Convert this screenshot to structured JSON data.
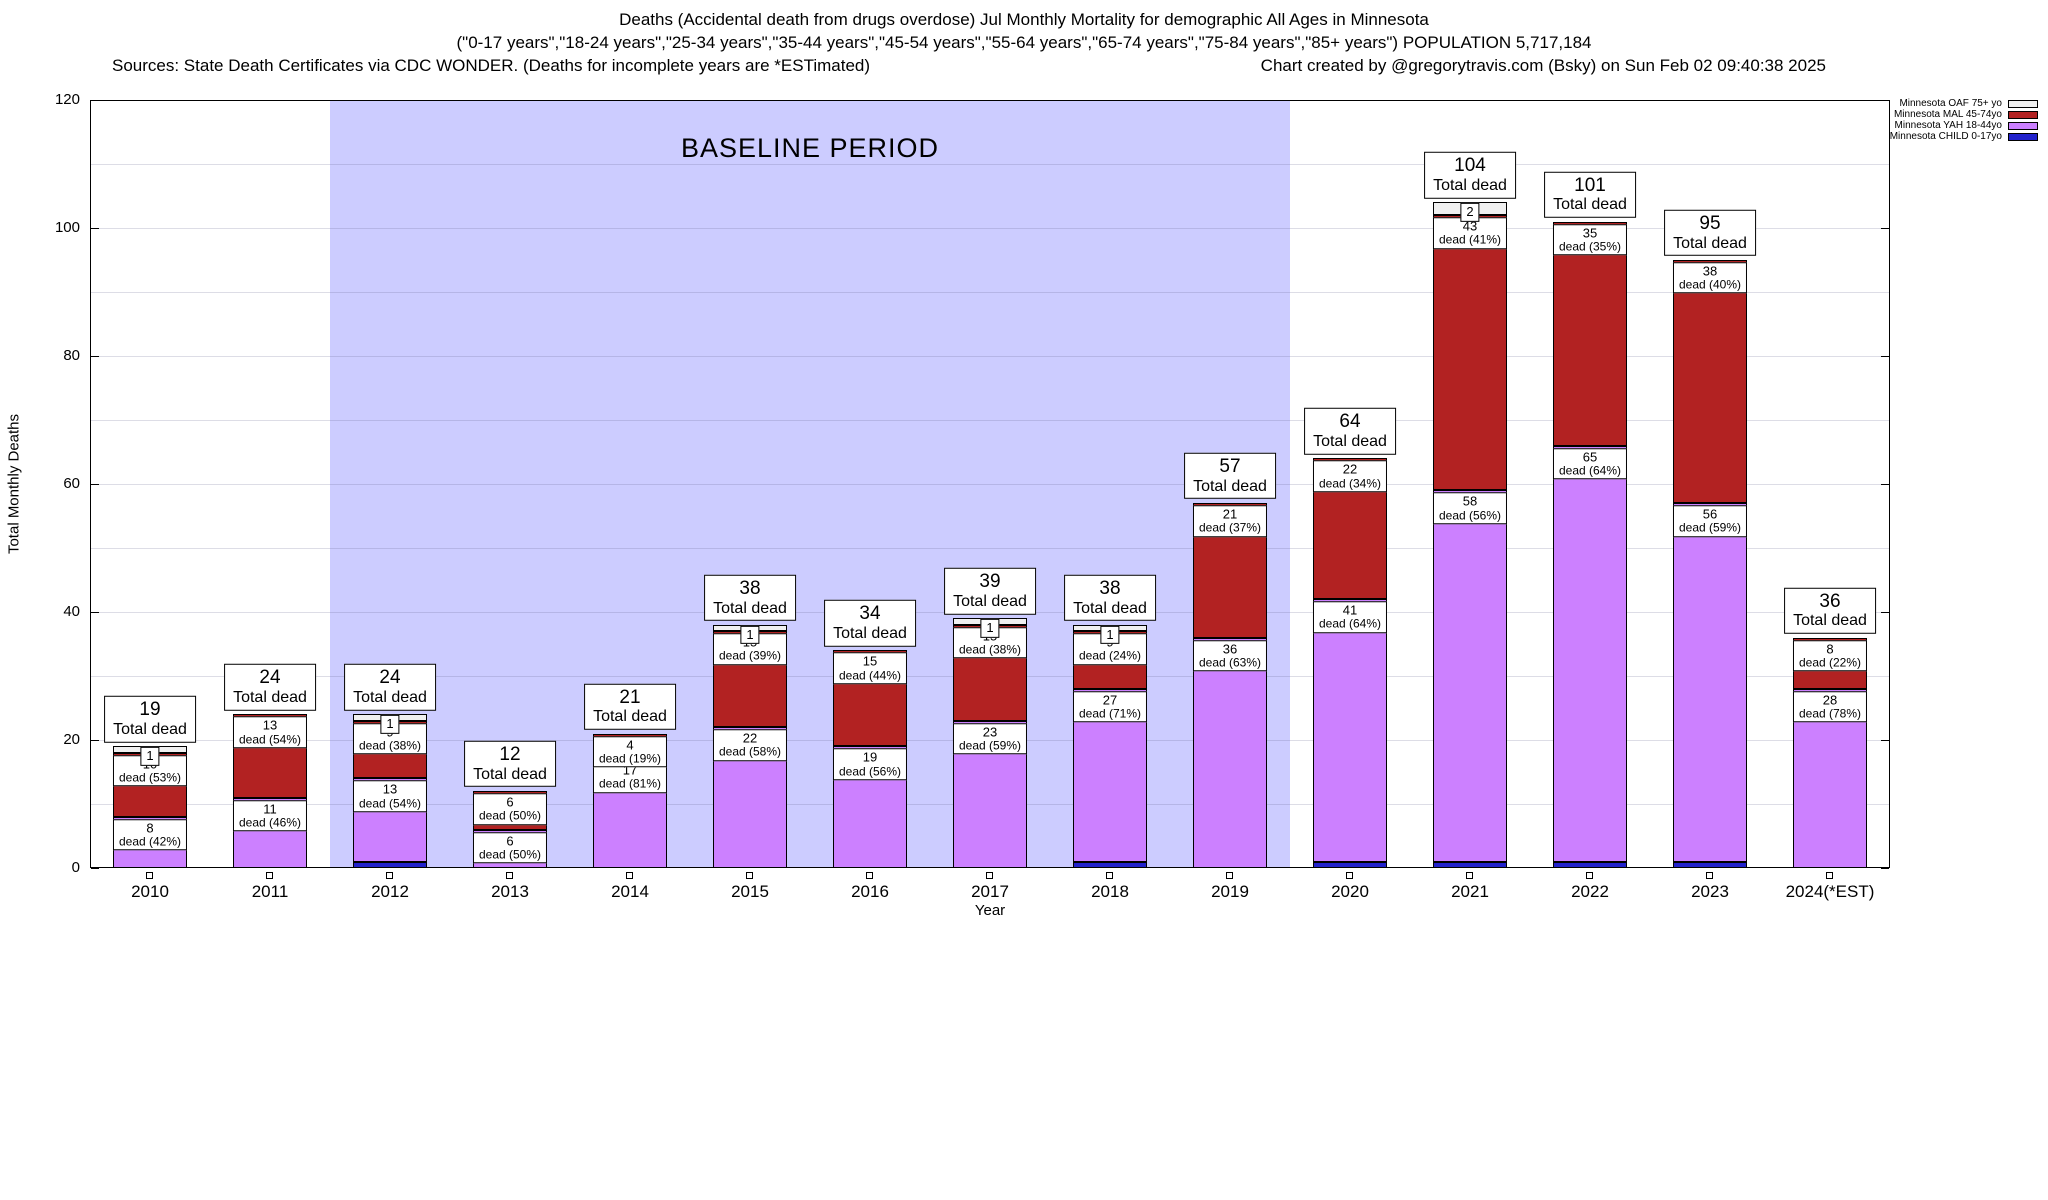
{
  "header": {
    "title_line1": "Deaths (Accidental death from drugs overdose) Jul Monthly Mortality for demographic All Ages in Minnesota",
    "title_line2": "(\"0-17 years\",\"18-24 years\",\"25-34 years\",\"35-44 years\",\"45-54 years\",\"55-64 years\",\"65-74 years\",\"75-84 years\",\"85+ years\") POPULATION 5,717,184",
    "sources": "Sources: State Death Certificates via CDC WONDER. (Deaths for incomplete years are *ESTimated)",
    "credit": "Chart created by @gregorytravis.com (Bsky) on Sun Feb 02 09:40:38 2025"
  },
  "chart_data": {
    "type": "bar",
    "stacked": true,
    "title": "Deaths (Accidental death from drugs overdose) Jul Monthly Mortality for demographic All Ages in Minnesota",
    "xlabel": "Year",
    "ylabel": "Total Monthly Deaths",
    "ylim": [
      0,
      120
    ],
    "yticks": [
      0,
      20,
      40,
      60,
      80,
      100,
      120
    ],
    "grid": "horizontal",
    "legend_position": "top-right",
    "categories": [
      "2010",
      "2011",
      "2012",
      "2013",
      "2014",
      "2015",
      "2016",
      "2017",
      "2018",
      "2019",
      "2020",
      "2021",
      "2022",
      "2023",
      "2024(*EST)"
    ],
    "series": [
      {
        "key": "child",
        "name": "Minnesota CHILD 0-17yo",
        "color": "#2222cc",
        "values": [
          0,
          0,
          1,
          0,
          0,
          0,
          0,
          0,
          1,
          0,
          1,
          1,
          1,
          1,
          0
        ]
      },
      {
        "key": "yah",
        "name": "Minnesota YAH 18-44yo",
        "color": "#cc80ff",
        "values": [
          8,
          11,
          13,
          6,
          17,
          22,
          19,
          23,
          27,
          36,
          41,
          58,
          65,
          56,
          28
        ]
      },
      {
        "key": "mal",
        "name": "Minnesota MAL 45-74yo",
        "color": "#b22222",
        "values": [
          10,
          13,
          9,
          6,
          4,
          15,
          15,
          15,
          9,
          21,
          22,
          43,
          35,
          38,
          8
        ]
      },
      {
        "key": "oaf",
        "name": "Minnesota OAF 75+ yo",
        "color": "#f0f0f0",
        "values": [
          1,
          0,
          1,
          0,
          0,
          1,
          0,
          1,
          1,
          0,
          0,
          2,
          0,
          0,
          0
        ]
      }
    ],
    "percent_labels": {
      "yah": [
        "42%",
        "46%",
        "54%",
        "50%",
        "81%",
        "58%",
        "56%",
        "59%",
        "71%",
        "63%",
        "64%",
        "56%",
        "64%",
        "59%",
        "78%"
      ],
      "mal": [
        "53%",
        "54%",
        "38%",
        "50%",
        "19%",
        "39%",
        "44%",
        "38%",
        "24%",
        "37%",
        "34%",
        "41%",
        "35%",
        "40%",
        "22%"
      ]
    },
    "totals": [
      19,
      24,
      24,
      12,
      21,
      38,
      34,
      39,
      38,
      57,
      64,
      104,
      101,
      95,
      36
    ],
    "total_label": "Total dead",
    "dead_word": "dead",
    "baseline": {
      "label": "BASELINE PERIOD",
      "color": "#ccccff",
      "start_index": 2,
      "end_index": 9
    }
  }
}
